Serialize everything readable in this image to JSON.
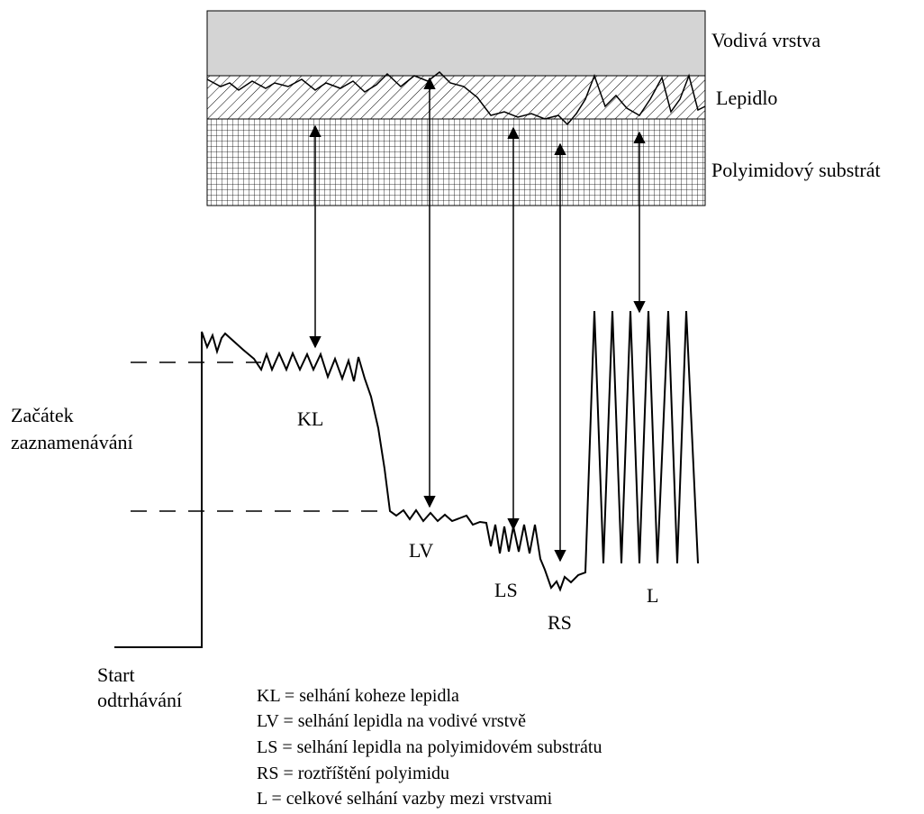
{
  "layers": [
    "Vodivá vrstva",
    "Lepidlo",
    "Polyimidový substrát"
  ],
  "regions": [
    "KL",
    "LV",
    "LS",
    "RS",
    "L"
  ],
  "annotations": {
    "recording_start": [
      "Začátek",
      "zaznamenávání"
    ],
    "peel_start": [
      "Start",
      "odtrhávání"
    ]
  },
  "legend": [
    "KL = selhání koheze lepidla",
    "LV = selhání lepidla na vodivé vrstvě",
    "LS = selhání lepidla na polyimidovém substrátu",
    "RS = roztříštění polyimidu",
    "L = celkové selhání vazby mezi vrstvami"
  ]
}
